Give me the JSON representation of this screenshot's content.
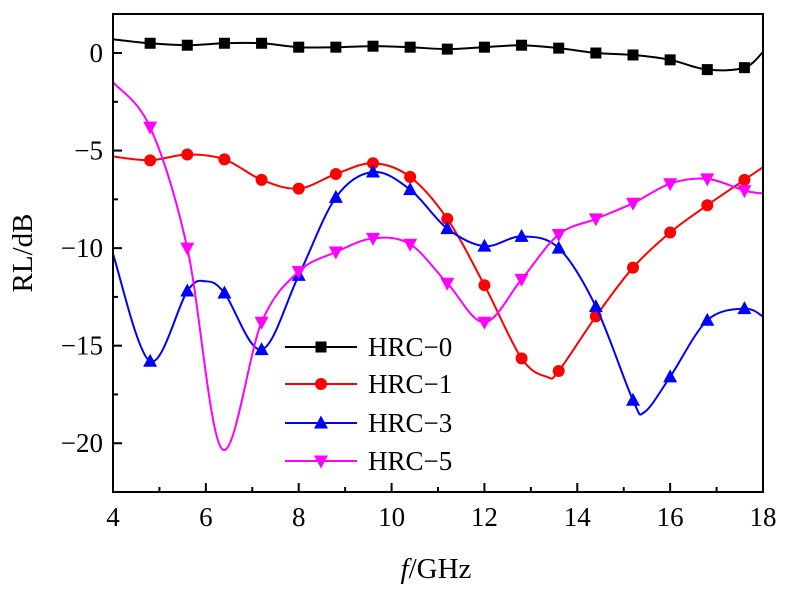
{
  "chart_data": {
    "type": "line",
    "title": "",
    "xlabel_italic": "f",
    "xlabel_rest": "/GHz",
    "ylabel": "RL/dB",
    "xlim": [
      4,
      18
    ],
    "ylim": [
      -22.5,
      2
    ],
    "xticks": [
      4,
      6,
      8,
      10,
      12,
      14,
      16,
      18
    ],
    "yticks": [
      0,
      -5,
      -10,
      -15,
      -20
    ],
    "xtick_labels": [
      "4",
      "6",
      "8",
      "10",
      "12",
      "14",
      "16",
      "18"
    ],
    "ytick_labels": [
      "0",
      "−5",
      "−10",
      "−15",
      "−20"
    ],
    "grid": false,
    "legend_position": "lower-center",
    "series": [
      {
        "name": "HRC−0",
        "color": "#000000",
        "marker": "square",
        "x": [
          4.0,
          4.8,
          5.6,
          6.4,
          7.2,
          8.0,
          8.8,
          9.6,
          10.4,
          11.2,
          12.0,
          12.8,
          13.6,
          14.4,
          15.2,
          16.0,
          16.8,
          17.6,
          18.0
        ],
        "y": [
          0.7,
          0.5,
          0.4,
          0.5,
          0.5,
          0.3,
          0.3,
          0.35,
          0.3,
          0.2,
          0.3,
          0.4,
          0.25,
          0.0,
          -0.1,
          -0.35,
          -0.85,
          -0.75,
          0.05
        ]
      },
      {
        "name": "HRC−1",
        "color": "#ff0000",
        "marker": "circle",
        "x": [
          4.0,
          4.8,
          5.6,
          6.4,
          7.2,
          8.0,
          8.8,
          9.6,
          10.4,
          11.2,
          12.0,
          12.8,
          13.35,
          13.6,
          14.4,
          15.2,
          16.0,
          16.8,
          17.6,
          18.0
        ],
        "y": [
          -5.3,
          -5.5,
          -5.2,
          -5.45,
          -6.5,
          -6.95,
          -6.2,
          -5.65,
          -6.35,
          -8.5,
          -11.9,
          -15.65,
          -16.6,
          -16.3,
          -13.5,
          -11.0,
          -9.2,
          -7.8,
          -6.5,
          -5.85
        ]
      },
      {
        "name": "HRC−3",
        "color": "#0000ff",
        "marker": "triangle-up",
        "x": [
          4.0,
          4.8,
          5.6,
          6.0,
          6.4,
          7.2,
          8.0,
          8.8,
          9.6,
          10.4,
          11.2,
          12.0,
          12.8,
          13.6,
          14.4,
          15.2,
          15.45,
          16.0,
          16.8,
          17.6,
          18.0
        ],
        "y": [
          -10.3,
          -15.8,
          -12.2,
          -11.7,
          -12.3,
          -15.2,
          -11.4,
          -7.4,
          -6.1,
          -7.0,
          -9.0,
          -9.9,
          -9.4,
          -10.0,
          -13.0,
          -17.8,
          -18.4,
          -16.6,
          -13.7,
          -13.1,
          -13.5
        ]
      },
      {
        "name": "HRC−5",
        "color": "#ff00ff",
        "marker": "triangle-down",
        "x": [
          4.0,
          4.8,
          5.6,
          6.35,
          7.2,
          8.0,
          8.8,
          9.6,
          10.4,
          11.2,
          12.0,
          12.8,
          13.6,
          14.4,
          15.2,
          16.0,
          16.8,
          17.6,
          18.0
        ],
        "y": [
          -1.5,
          -3.8,
          -10.0,
          -20.3,
          -13.8,
          -11.2,
          -10.2,
          -9.5,
          -9.8,
          -11.8,
          -13.8,
          -11.6,
          -9.3,
          -8.5,
          -7.7,
          -6.7,
          -6.45,
          -7.05,
          -7.2
        ]
      }
    ]
  }
}
